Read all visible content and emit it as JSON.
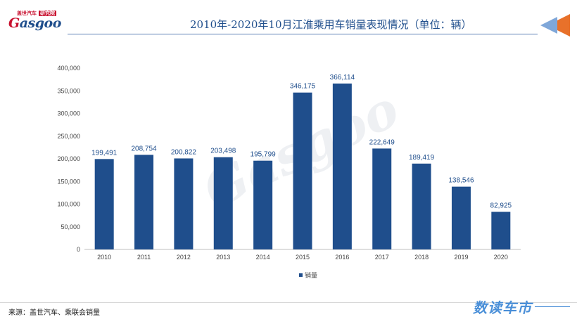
{
  "header": {
    "logo": {
      "top_cn": "盖世汽车",
      "top_tag": "研究院",
      "main_g": "G",
      "main_rest": "asgoo"
    },
    "title": "2010年-2020年10月江淮乘用车销量表现情况（单位：辆）"
  },
  "watermark": {
    "text": "Gasgoo"
  },
  "chart_data": {
    "type": "bar",
    "categories": [
      "2010",
      "2011",
      "2012",
      "2013",
      "2014",
      "2015",
      "2016",
      "2017",
      "2018",
      "2019",
      "2020"
    ],
    "series": [
      {
        "name": "销量",
        "values": [
          199491,
          208754,
          200822,
          203498,
          195799,
          346175,
          366114,
          222649,
          189419,
          138546,
          82925
        ],
        "color": "#1f4e8c"
      }
    ],
    "data_labels": [
      "199,491",
      "208,754",
      "200,822",
      "203,498",
      "195,799",
      "346,175",
      "366,114",
      "222,649",
      "189,419",
      "138,546",
      "82,925"
    ],
    "ylim": [
      0,
      400000
    ],
    "yticks": [
      0,
      50000,
      100000,
      150000,
      200000,
      250000,
      300000,
      350000,
      400000
    ],
    "ytick_labels": [
      "0",
      "50,000",
      "100,000",
      "150,000",
      "200,000",
      "250,000",
      "300,000",
      "350,000",
      "400,000"
    ],
    "grid": false,
    "legend": "bottom-center"
  },
  "footer": {
    "source": "来源：盖世汽车、乘联会销量",
    "brand": "数读车市"
  }
}
